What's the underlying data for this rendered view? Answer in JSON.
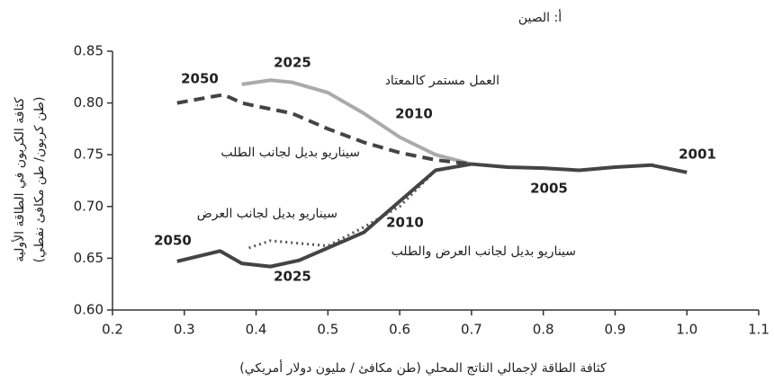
{
  "chart_data": {
    "type": "line",
    "title": "أ: الصين",
    "ylabel": "كثافة الكربون في الطاقة الأولية",
    "ylabel2": "(طن كربون/ طن مكافئ نفطي)",
    "xlabel": "كثافة الطاقة لإجمالي الناتج المحلي (طن مكافئ / مليون دولار أمريكي)",
    "xlim": [
      0.2,
      1.1
    ],
    "xticks": [
      0.2,
      0.3,
      0.4,
      0.5,
      0.6,
      0.7,
      0.8,
      0.9,
      {
        "value": 1.0,
        "label": "1.0"
      },
      1.1
    ],
    "ylim": [
      0.6,
      0.85
    ],
    "yticks": [
      {
        "value": 0.6,
        "label": "0.60"
      },
      0.65,
      {
        "value": 0.7,
        "label": "0.70"
      },
      0.75,
      {
        "value": 0.8,
        "label": "0.80"
      },
      0.85
    ],
    "series": [
      {
        "name": "العمل مستمر كالمعتاد",
        "color": "#aaaaaa",
        "style": "solid",
        "x": [
          0.38,
          0.42,
          0.45,
          0.5,
          0.55,
          0.6,
          0.65,
          0.7
        ],
        "values": [
          0.818,
          0.822,
          0.82,
          0.81,
          0.79,
          0.767,
          0.75,
          0.741
        ]
      },
      {
        "name": "سيناريو بديل لجانب الطلب",
        "color": "#444444",
        "style": "dashed",
        "x": [
          0.29,
          0.33,
          0.355,
          0.38,
          0.4,
          0.45,
          0.5,
          0.55,
          0.6,
          0.65,
          0.7
        ],
        "values": [
          0.8,
          0.805,
          0.808,
          0.8,
          0.797,
          0.79,
          0.775,
          0.762,
          0.752,
          0.745,
          0.741
        ]
      },
      {
        "name": "سيناريو بديل لجانب العرض",
        "color": "#555555",
        "style": "dotted",
        "x": [
          0.39,
          0.42,
          0.45,
          0.5,
          0.55,
          0.6,
          0.65,
          0.7
        ],
        "values": [
          0.66,
          0.667,
          0.665,
          0.662,
          0.68,
          0.7,
          0.735,
          0.741
        ]
      },
      {
        "name": "سيناريو بديل لجانب العرض والطلب",
        "color": "#444444",
        "style": "solid",
        "x": [
          0.29,
          0.32,
          0.35,
          0.38,
          0.42,
          0.46,
          0.5,
          0.55,
          0.6,
          0.65,
          0.7
        ],
        "values": [
          0.647,
          0.652,
          0.657,
          0.645,
          0.642,
          0.648,
          0.66,
          0.675,
          0.705,
          0.735,
          0.741
        ]
      },
      {
        "color": "#444444",
        "style": "solid",
        "x": [
          0.7,
          0.75,
          0.8,
          0.85,
          0.9,
          0.95,
          1.0
        ],
        "values": [
          0.741,
          0.738,
          0.737,
          0.735,
          0.738,
          0.74,
          0.733
        ]
      }
    ],
    "annotations": [
      "2050",
      "2025",
      "2010",
      "2001",
      "2005",
      "2010",
      "2050",
      "2025"
    ]
  }
}
